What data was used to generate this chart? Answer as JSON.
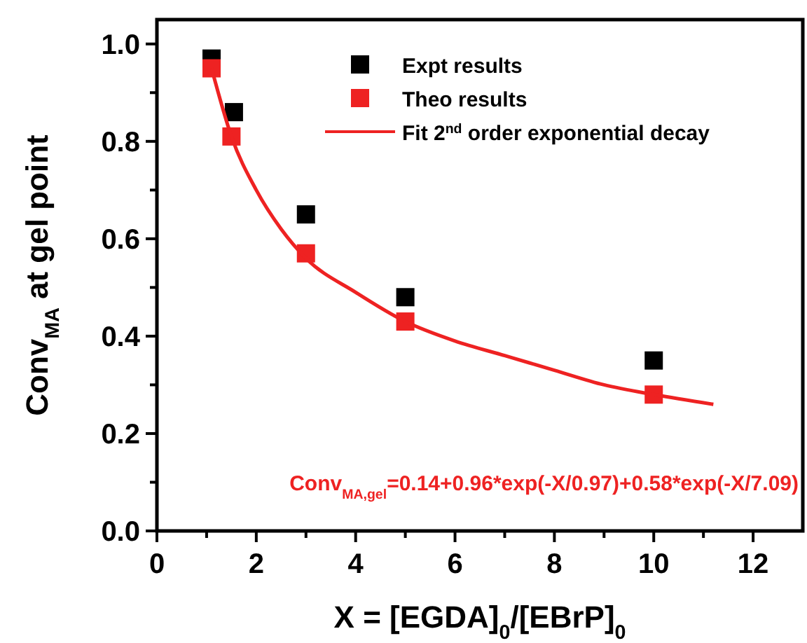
{
  "chart_data": {
    "type": "scatter",
    "xlabel": "X = [EGDA]$_{0}$/[EBrP]$_{0}$",
    "ylabel": "Conv$_{MA}$ at gel point",
    "xlim": [
      0,
      13
    ],
    "ylim": [
      0,
      1.05
    ],
    "xticks": [
      0,
      {
        "value": 1,
        "label": null
      },
      2,
      {
        "value": 3,
        "label": null
      },
      4,
      {
        "value": 5,
        "label": null
      },
      6,
      {
        "value": 7,
        "label": null
      },
      8,
      {
        "value": 9,
        "label": null
      },
      10,
      {
        "value": 11,
        "label": null
      },
      12
    ],
    "yticks": [
      {
        "value": 0,
        "label": "0.0"
      },
      {
        "value": 0.1,
        "label": null
      },
      {
        "value": 0.2,
        "label": "0.2"
      },
      {
        "value": 0.3,
        "label": null
      },
      {
        "value": 0.4,
        "label": "0.4"
      },
      {
        "value": 0.5,
        "label": null
      },
      {
        "value": 0.6,
        "label": "0.6"
      },
      {
        "value": 0.7,
        "label": null
      },
      {
        "value": 0.8,
        "label": "0.8"
      },
      {
        "value": 0.9,
        "label": null
      },
      {
        "value": 1,
        "label": "1.0"
      }
    ],
    "grid": false,
    "legend": "top right",
    "marker": "square",
    "series": [
      {
        "name": "Expt results",
        "color": "#000000",
        "x": [
          1.1,
          1.55,
          3,
          5,
          10
        ],
        "values": [
          0.97,
          0.86,
          0.65,
          0.48,
          0.35
        ]
      },
      {
        "name": "Theo results",
        "color": "#ee2222",
        "x": [
          1.1,
          1.5,
          3,
          5,
          10
        ],
        "values": [
          0.95,
          0.81,
          0.57,
          0.43,
          0.28
        ]
      },
      {
        "name": "Fit 2$^{nd}$ order exponential decay",
        "type": "line",
        "color": "#ee2222",
        "marker": "none",
        "line_style": "solid",
        "x": [
          1.1,
          1.5,
          2,
          2.5,
          3,
          4,
          5,
          6,
          7,
          8,
          9,
          10,
          11.2
        ],
        "values": [
          0.95,
          0.81,
          0.7,
          0.62,
          0.56,
          0.49,
          0.43,
          0.39,
          0.36,
          0.33,
          0.3,
          0.28,
          0.26
        ]
      }
    ],
    "annotations": [
      "Conv$_{MA,gel}$=0.14+0.96*exp(-X/0.97)+0.58*exp(-X/7.09)"
    ]
  }
}
